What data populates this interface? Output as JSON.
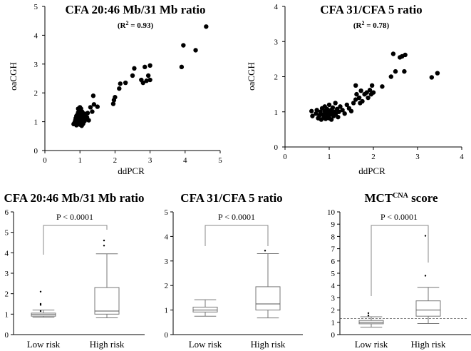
{
  "chart_data": [
    {
      "type": "scatter",
      "title": "CFA 20:46 Mb/31 Mb ratio",
      "subtitle": "(R",
      "subtitle_sup": "2",
      "subtitle_end": " = 0.93)",
      "xlabel": "ddPCR",
      "ylabel": "oaCGH",
      "xlim": [
        0,
        5
      ],
      "ylim": [
        0,
        5
      ],
      "xticks": [
        "0",
        "1",
        "2",
        "3",
        "4",
        "5"
      ],
      "yticks": [
        "0",
        "1",
        "2",
        "3",
        "4",
        "5"
      ],
      "points": [
        [
          0.82,
          0.92
        ],
        [
          0.85,
          0.98
        ],
        [
          0.87,
          1.05
        ],
        [
          0.88,
          1.12
        ],
        [
          0.9,
          1.2
        ],
        [
          0.9,
          0.88
        ],
        [
          0.92,
          1.0
        ],
        [
          0.93,
          1.25
        ],
        [
          0.94,
          1.08
        ],
        [
          0.95,
          1.32
        ],
        [
          0.96,
          0.95
        ],
        [
          0.97,
          1.15
        ],
        [
          0.98,
          1.4
        ],
        [
          0.99,
          1.02
        ],
        [
          1.0,
          1.22
        ],
        [
          1.0,
          0.9
        ],
        [
          1.01,
          1.3
        ],
        [
          1.02,
          1.1
        ],
        [
          1.03,
          1.45
        ],
        [
          1.04,
          0.98
        ],
        [
          1.05,
          1.18
        ],
        [
          1.06,
          1.35
        ],
        [
          1.07,
          1.05
        ],
        [
          1.08,
          1.25
        ],
        [
          1.09,
          0.93
        ],
        [
          1.1,
          1.12
        ],
        [
          1.12,
          1.28
        ],
        [
          1.13,
          1.02
        ],
        [
          1.15,
          1.2
        ],
        [
          1.17,
          1.08
        ],
        [
          1.2,
          1.15
        ],
        [
          1.22,
          1.3
        ],
        [
          1.25,
          1.05
        ],
        [
          0.95,
          1.45
        ],
        [
          1.0,
          1.5
        ],
        [
          0.88,
          1.02
        ],
        [
          1.05,
          0.86
        ],
        [
          1.3,
          1.5
        ],
        [
          1.35,
          1.35
        ],
        [
          1.4,
          1.6
        ],
        [
          1.38,
          1.9
        ],
        [
          1.5,
          1.52
        ],
        [
          1.95,
          1.62
        ],
        [
          1.97,
          1.75
        ],
        [
          2.0,
          1.85
        ],
        [
          2.12,
          2.15
        ],
        [
          2.15,
          2.32
        ],
        [
          2.3,
          2.35
        ],
        [
          2.5,
          2.6
        ],
        [
          2.55,
          2.85
        ],
        [
          2.75,
          2.45
        ],
        [
          2.8,
          2.35
        ],
        [
          2.85,
          2.9
        ],
        [
          2.9,
          2.42
        ],
        [
          2.95,
          2.6
        ],
        [
          3.0,
          2.95
        ],
        [
          3.0,
          2.45
        ],
        [
          3.9,
          2.9
        ],
        [
          3.95,
          3.65
        ],
        [
          4.3,
          3.48
        ],
        [
          4.6,
          4.3
        ]
      ]
    },
    {
      "type": "scatter",
      "title": "CFA 31/CFA 5 ratio",
      "subtitle": "(R",
      "subtitle_sup": "2",
      "subtitle_end": " = 0.78)",
      "xlabel": "ddPCR",
      "ylabel": "oaCGH",
      "xlim": [
        0,
        4
      ],
      "ylim": [
        0,
        4
      ],
      "xticks": [
        "0",
        "1",
        "2",
        "3",
        "4"
      ],
      "yticks": [
        "0",
        "1",
        "2",
        "3",
        "4"
      ],
      "points": [
        [
          0.6,
          1.02
        ],
        [
          0.62,
          0.88
        ],
        [
          0.7,
          0.95
        ],
        [
          0.72,
          1.05
        ],
        [
          0.75,
          0.82
        ],
        [
          0.78,
          0.9
        ],
        [
          0.8,
          1.0
        ],
        [
          0.82,
          0.78
        ],
        [
          0.84,
          1.1
        ],
        [
          0.86,
          0.92
        ],
        [
          0.88,
          0.85
        ],
        [
          0.9,
          1.02
        ],
        [
          0.9,
          1.15
        ],
        [
          0.92,
          0.8
        ],
        [
          0.94,
          0.95
        ],
        [
          0.95,
          1.08
        ],
        [
          0.96,
          0.88
        ],
        [
          0.98,
          1.0
        ],
        [
          1.0,
          0.82
        ],
        [
          1.0,
          1.2
        ],
        [
          1.02,
          0.92
        ],
        [
          1.04,
          1.05
        ],
        [
          1.05,
          0.78
        ],
        [
          1.06,
          0.98
        ],
        [
          1.08,
          1.12
        ],
        [
          1.1,
          0.88
        ],
        [
          1.12,
          1.0
        ],
        [
          1.14,
          1.25
        ],
        [
          1.15,
          0.95
        ],
        [
          1.18,
          1.08
        ],
        [
          1.2,
          0.85
        ],
        [
          1.22,
          1.0
        ],
        [
          1.25,
          1.15
        ],
        [
          1.3,
          1.05
        ],
        [
          1.35,
          0.95
        ],
        [
          1.4,
          1.2
        ],
        [
          1.45,
          1.1
        ],
        [
          1.5,
          1.02
        ],
        [
          1.55,
          1.25
        ],
        [
          1.6,
          1.35
        ],
        [
          1.62,
          1.5
        ],
        [
          1.68,
          1.4
        ],
        [
          1.7,
          1.25
        ],
        [
          1.72,
          1.6
        ],
        [
          1.75,
          1.3
        ],
        [
          1.8,
          1.5
        ],
        [
          1.85,
          1.55
        ],
        [
          1.88,
          1.4
        ],
        [
          1.92,
          1.62
        ],
        [
          1.95,
          1.5
        ],
        [
          1.97,
          1.75
        ],
        [
          2.0,
          1.55
        ],
        [
          1.6,
          1.75
        ],
        [
          2.2,
          1.72
        ],
        [
          2.4,
          2.0
        ],
        [
          2.45,
          2.65
        ],
        [
          2.5,
          2.15
        ],
        [
          2.6,
          2.55
        ],
        [
          2.65,
          2.58
        ],
        [
          2.7,
          2.15
        ],
        [
          2.72,
          2.62
        ],
        [
          3.32,
          1.98
        ],
        [
          3.45,
          2.1
        ]
      ]
    },
    {
      "type": "boxplot",
      "title": "CFA 20:46 Mb/31 Mb ratio",
      "categories": [
        "Low risk",
        "High risk"
      ],
      "ylim": [
        0,
        6
      ],
      "yticks": [
        "0",
        "1",
        "2",
        "3",
        "4",
        "5",
        "6"
      ],
      "pvalue": "P < 0.0001",
      "boxes": [
        {
          "name": "Low risk",
          "whisker_low": 0.85,
          "q1": 0.9,
          "median": 0.98,
          "q3": 1.05,
          "whisker_high": 1.2,
          "outliers": [
            1.15,
            1.45,
            1.5,
            2.1
          ]
        },
        {
          "name": "High risk",
          "whisker_low": 0.82,
          "q1": 1.0,
          "median": 1.15,
          "q3": 2.3,
          "whisker_high": 3.95,
          "outliers": [
            4.35,
            4.6
          ]
        }
      ]
    },
    {
      "type": "boxplot",
      "title": "CFA 31/CFA 5 ratio",
      "categories": [
        "Low risk",
        "High risk"
      ],
      "ylim": [
        0,
        5
      ],
      "yticks": [
        "0",
        "1",
        "2",
        "3",
        "4",
        "5"
      ],
      "pvalue": "P < 0.0001",
      "boxes": [
        {
          "name": "Low risk",
          "whisker_low": 0.75,
          "q1": 0.92,
          "median": 1.0,
          "q3": 1.12,
          "whisker_high": 1.42,
          "outliers": []
        },
        {
          "name": "High risk",
          "whisker_low": 0.68,
          "q1": 1.0,
          "median": 1.25,
          "q3": 1.95,
          "whisker_high": 3.3,
          "outliers": [
            3.42
          ]
        }
      ]
    },
    {
      "type": "boxplot",
      "title": "MCT",
      "title_sup": "CNA",
      "title_end": " score",
      "categories": [
        "Low risk",
        "High risk"
      ],
      "ylim": [
        0,
        10
      ],
      "yticks": [
        "0",
        "1",
        "2",
        "3",
        "4",
        "5",
        "6",
        "7",
        "8",
        "9",
        "10"
      ],
      "pvalue": "P < 0.0001",
      "threshold": 1.3,
      "boxes": [
        {
          "name": "Low risk",
          "whisker_low": 0.6,
          "q1": 0.88,
          "median": 1.0,
          "q3": 1.15,
          "whisker_high": 1.45,
          "outliers": [
            1.55,
            1.75
          ]
        },
        {
          "name": "High risk",
          "whisker_low": 0.9,
          "q1": 1.5,
          "median": 2.0,
          "q3": 2.75,
          "whisker_high": 3.85,
          "outliers": [
            4.8,
            8.05
          ]
        }
      ]
    }
  ]
}
